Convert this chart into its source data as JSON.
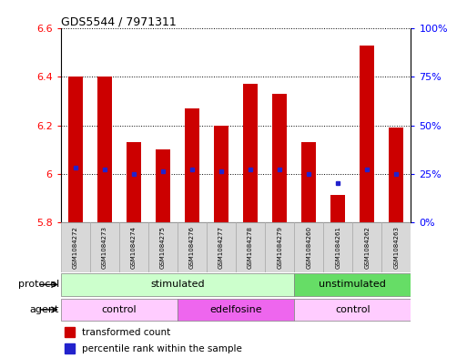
{
  "title": "GDS5544 / 7971311",
  "samples": [
    "GSM1084272",
    "GSM1084273",
    "GSM1084274",
    "GSM1084275",
    "GSM1084276",
    "GSM1084277",
    "GSM1084278",
    "GSM1084279",
    "GSM1084260",
    "GSM1084261",
    "GSM1084262",
    "GSM1084263"
  ],
  "bar_values": [
    6.4,
    6.4,
    6.13,
    6.1,
    6.27,
    6.2,
    6.37,
    6.33,
    6.13,
    5.91,
    6.53,
    6.19
  ],
  "bar_base": 5.8,
  "percentile_pct": [
    28,
    27,
    25,
    26,
    27,
    26,
    27,
    27,
    25,
    20,
    27,
    25
  ],
  "ylim_left": [
    5.8,
    6.6
  ],
  "ylim_right": [
    0,
    100
  ],
  "yticks_left": [
    5.8,
    6.0,
    6.2,
    6.4,
    6.6
  ],
  "ytick_labels_left": [
    "5.8",
    "6",
    "6.2",
    "6.4",
    "6.6"
  ],
  "yticks_right": [
    0,
    25,
    50,
    75,
    100
  ],
  "ytick_labels_right": [
    "0%",
    "25%",
    "50%",
    "75%",
    "100%"
  ],
  "bar_color": "#cc0000",
  "dot_color": "#2222cc",
  "protocol_groups": [
    {
      "label": "stimulated",
      "start": 0,
      "end": 8,
      "color": "#ccffcc"
    },
    {
      "label": "unstimulated",
      "start": 8,
      "end": 12,
      "color": "#66dd66"
    }
  ],
  "agent_groups": [
    {
      "label": "control",
      "start": 0,
      "end": 4,
      "color": "#ffccff"
    },
    {
      "label": "edelfosine",
      "start": 4,
      "end": 8,
      "color": "#ee66ee"
    },
    {
      "label": "control",
      "start": 8,
      "end": 12,
      "color": "#ffccff"
    }
  ],
  "legend_bar_label": "transformed count",
  "legend_dot_label": "percentile rank within the sample",
  "protocol_label": "protocol",
  "agent_label": "agent",
  "sample_box_color": "#d8d8d8",
  "sample_box_edge": "#aaaaaa"
}
